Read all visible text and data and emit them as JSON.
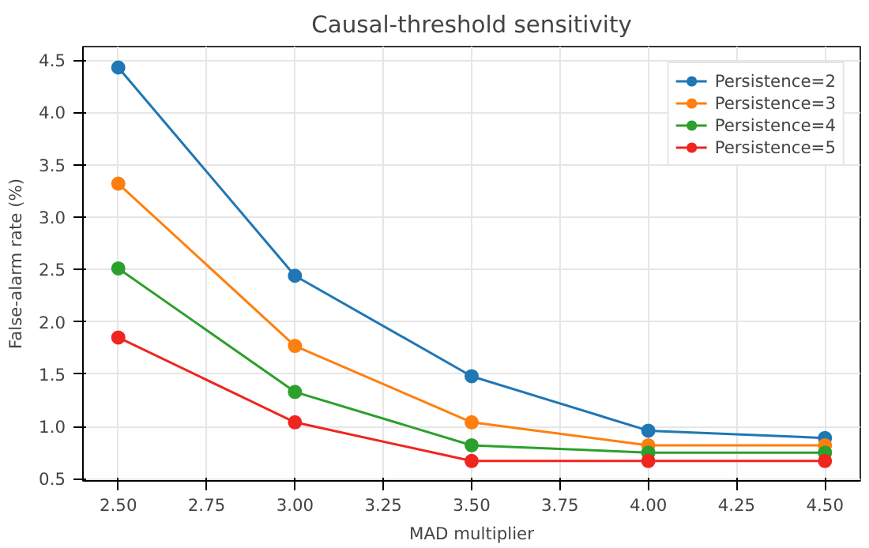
{
  "chart_data": {
    "type": "line",
    "title": "Causal-threshold sensitivity",
    "xlabel": "MAD multiplier",
    "ylabel": "False-alarm rate (%)",
    "x": [
      2.5,
      3.0,
      3.5,
      4.0,
      4.5
    ],
    "series": [
      {
        "name": "Persistence=2",
        "color": "#1f77b4",
        "values": [
          4.43,
          2.44,
          1.48,
          0.96,
          0.89
        ]
      },
      {
        "name": "Persistence=3",
        "color": "#ff7f0e",
        "values": [
          3.32,
          1.77,
          1.04,
          0.82,
          0.82
        ]
      },
      {
        "name": "Persistence=4",
        "color": "#2ca02c",
        "values": [
          2.51,
          1.33,
          0.82,
          0.75,
          0.75
        ]
      },
      {
        "name": "Persistence=5",
        "color": "#f0251f",
        "values": [
          1.85,
          1.04,
          0.67,
          0.67,
          0.67
        ]
      }
    ],
    "xlim": [
      2.4,
      4.6
    ],
    "ylim": [
      0.48,
      4.63
    ],
    "xticks": [
      {
        "value": 2.5,
        "label": "2.50"
      },
      {
        "value": 2.75,
        "label": "2.75"
      },
      {
        "value": 3.0,
        "label": "3.00"
      },
      {
        "value": 3.25,
        "label": "3.25"
      },
      {
        "value": 3.5,
        "label": "3.50"
      },
      {
        "value": 3.75,
        "label": "3.75"
      },
      {
        "value": 4.0,
        "label": "4.00"
      },
      {
        "value": 4.25,
        "label": "4.25"
      },
      {
        "value": 4.5,
        "label": "4.50"
      }
    ],
    "yticks": [
      {
        "value": 0.5,
        "label": "0.5"
      },
      {
        "value": 1.0,
        "label": "1.0"
      },
      {
        "value": 1.5,
        "label": "1.5"
      },
      {
        "value": 2.0,
        "label": "2.0"
      },
      {
        "value": 2.5,
        "label": "2.5"
      },
      {
        "value": 3.0,
        "label": "3.0"
      },
      {
        "value": 3.5,
        "label": "3.5"
      },
      {
        "value": 4.0,
        "label": "4.0"
      },
      {
        "value": 4.5,
        "label": "4.5"
      }
    ],
    "grid": true,
    "legend": "top right",
    "marker": "circle",
    "line_style": "solid"
  }
}
